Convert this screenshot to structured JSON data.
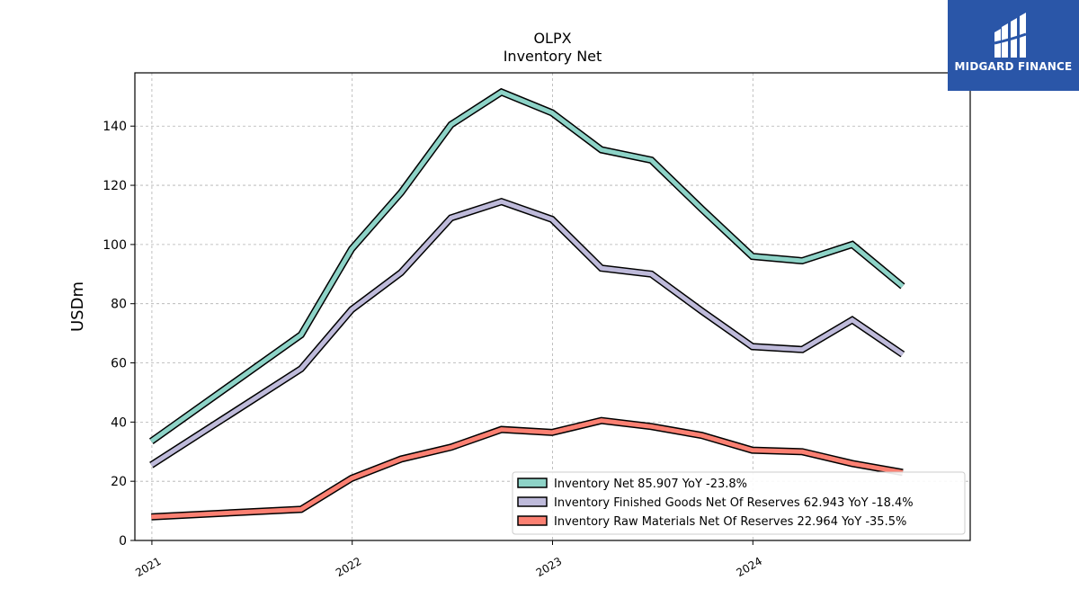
{
  "chart_data": {
    "type": "line",
    "title": "OLPX",
    "subtitle": "Inventory Net",
    "ylabel": "USDm",
    "ylim": [
      0,
      158
    ],
    "xlim": [
      "2020-12-01",
      "2025-01-31"
    ],
    "yticks": [
      0,
      20,
      40,
      60,
      80,
      100,
      120,
      140
    ],
    "xticks": [
      "2021-01-01",
      "2022-01-01",
      "2023-01-01",
      "2024-01-01"
    ],
    "xtick_labels": [
      "2021",
      "2022",
      "2023",
      "2024"
    ],
    "grid": true,
    "legend_position": "lower-right",
    "x": [
      "2020-12-31",
      "2021-09-30",
      "2021-12-31",
      "2022-03-31",
      "2022-06-30",
      "2022-09-30",
      "2022-12-31",
      "2023-03-31",
      "2023-06-30",
      "2023-09-30",
      "2023-12-31",
      "2024-03-31",
      "2024-06-30",
      "2024-09-30"
    ],
    "series": [
      {
        "name": "Inventory Net",
        "legend_label": "Inventory Net  85.907 YoY -23.8%",
        "color": "#8dd3c7",
        "values": [
          33.5,
          69.5,
          98.5,
          117.5,
          140.5,
          151.5,
          144.5,
          132.0,
          128.5,
          112.0,
          96.0,
          94.5,
          100.0,
          85.9
        ]
      },
      {
        "name": "Inventory Finished Goods Net Of Reserves",
        "legend_label": "Inventory Finished Goods Net Of Reserves  62.943 YoY -18.4%",
        "color": "#bebada",
        "values": [
          25.5,
          58.0,
          78.0,
          90.5,
          109.0,
          114.5,
          108.5,
          92.0,
          90.0,
          77.5,
          65.5,
          64.5,
          74.5,
          62.9
        ]
      },
      {
        "name": "Inventory Raw Materials Net Of Reserves",
        "legend_label": "Inventory Raw Materials Net Of Reserves  22.964 YoY -35.5%",
        "color": "#fb8072",
        "values": [
          8.0,
          10.5,
          21.0,
          27.5,
          31.5,
          37.5,
          36.5,
          40.5,
          38.5,
          35.5,
          30.5,
          30.0,
          26.0,
          23.0
        ]
      }
    ]
  },
  "logo": {
    "name": "MIDGARD FINANCE",
    "color": "#2a56a8"
  }
}
